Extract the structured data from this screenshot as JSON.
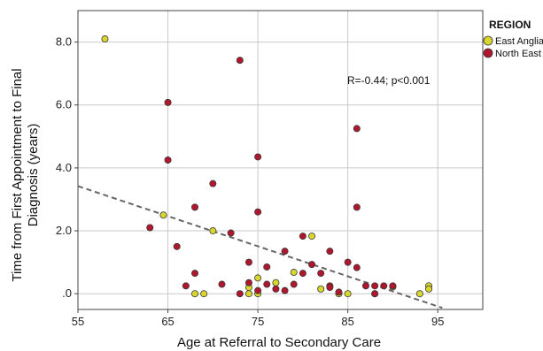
{
  "chart_data": {
    "type": "scatter",
    "xlabel": "Age at Referral to Secondary Care",
    "ylabel_lines": [
      "Time from First Appointment to Final",
      "Diagnosis (years)"
    ],
    "xlim": [
      55,
      100
    ],
    "ylim": [
      -0.5,
      9.0
    ],
    "x_ticks": [
      55,
      65,
      75,
      85,
      95
    ],
    "x_tick_labels": [
      "55",
      "65",
      "75",
      "85",
      "95"
    ],
    "y_ticks": [
      0,
      2,
      4,
      6,
      8
    ],
    "y_tick_labels": [
      ".0",
      "2.0",
      "4.0",
      "6.0",
      "8.0"
    ],
    "grid": true,
    "legend": {
      "title": "REGION",
      "placement": "top-right",
      "entries": [
        {
          "label": "East Anglia",
          "color": "#d9d62e"
        },
        {
          "label": "North East",
          "color": "#b0162c"
        }
      ]
    },
    "annotation": "R=-0.44; p<0.001",
    "fit_line": {
      "x": [
        55,
        95.5
      ],
      "y": [
        3.42,
        -0.45
      ],
      "color": "#666666",
      "style": "dashed"
    },
    "series": [
      {
        "region": "East Anglia",
        "color": "#d9d62e",
        "x": [
          58,
          64.5,
          70,
          81,
          94,
          75,
          68,
          69,
          74,
          79,
          82,
          84,
          85,
          88,
          93,
          94,
          74,
          75,
          77,
          90
        ],
        "y": [
          8.1,
          2.5,
          2.0,
          1.83,
          0.25,
          0.0,
          0.0,
          0.0,
          0.0,
          0.68,
          0.15,
          0.0,
          0.0,
          0.0,
          0.0,
          0.15,
          0.2,
          0.5,
          0.35,
          0.22
        ]
      },
      {
        "region": "North East",
        "color": "#b0162c",
        "x": [
          73,
          65,
          86,
          65,
          75,
          70,
          63,
          68,
          72,
          75,
          66,
          80,
          78,
          83,
          85,
          86,
          87,
          88,
          89,
          90,
          76,
          74,
          68,
          67,
          71,
          73,
          75,
          77,
          79,
          81,
          83,
          84,
          80,
          82,
          76,
          86,
          74,
          78,
          83,
          88
        ],
        "y": [
          7.42,
          6.08,
          5.25,
          4.25,
          4.35,
          3.5,
          2.1,
          2.75,
          1.93,
          2.6,
          1.5,
          1.83,
          1.35,
          1.35,
          1.0,
          0.83,
          0.25,
          0.25,
          0.25,
          0.25,
          0.85,
          1.0,
          0.65,
          0.25,
          0.3,
          0.0,
          0.1,
          0.15,
          0.3,
          0.93,
          0.25,
          0.05,
          0.65,
          0.65,
          0.3,
          2.75,
          0.35,
          0.1,
          0.2,
          0.0
        ]
      }
    ]
  }
}
